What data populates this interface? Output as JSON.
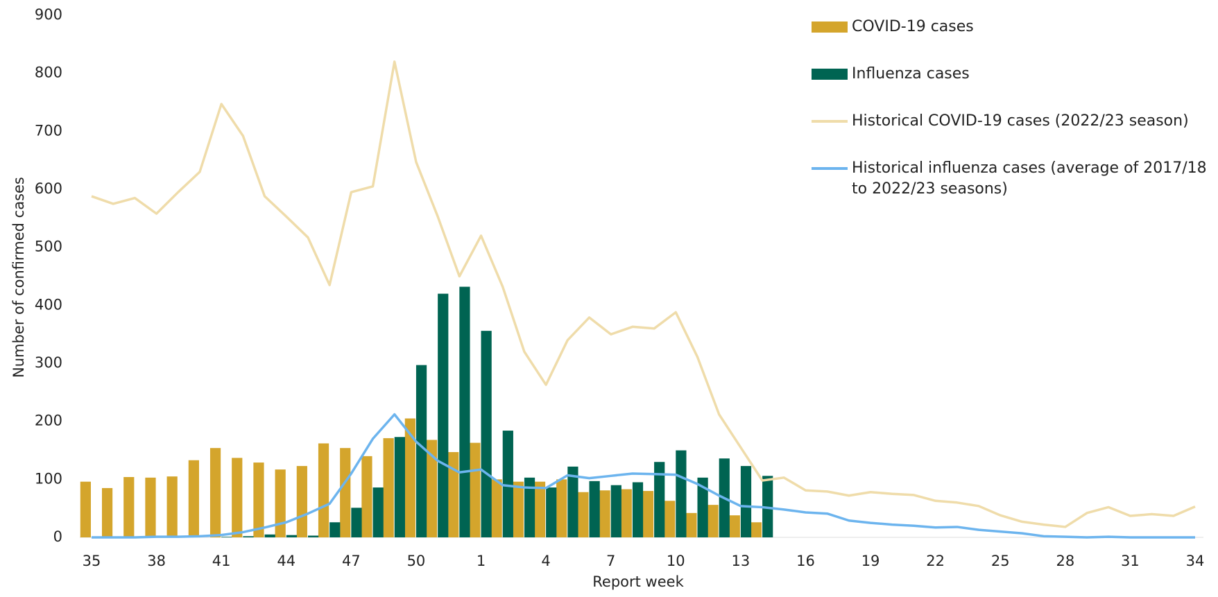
{
  "chart_data": {
    "type": "bar",
    "x_label": "Report week",
    "y_label": "Number of confirmed cases",
    "categories": [
      "35",
      null,
      null,
      "38",
      null,
      null,
      "41",
      null,
      null,
      "44",
      null,
      null,
      "47",
      null,
      null,
      "50",
      null,
      null,
      "1",
      null,
      null,
      "4",
      null,
      null,
      "7",
      null,
      null,
      "10",
      null,
      null,
      "13",
      null,
      null,
      "16",
      null,
      null,
      "19",
      null,
      null,
      "22",
      null,
      null,
      "25",
      null,
      null,
      "28",
      null,
      null,
      "31",
      null,
      null,
      "34"
    ],
    "series": [
      {
        "name": "COVID-19 cases",
        "type": "bar",
        "color": "#d4a52c",
        "values": [
          96,
          85,
          104,
          103,
          105,
          133,
          154,
          137,
          129,
          117,
          123,
          162,
          154,
          140,
          171,
          205,
          168,
          147,
          163,
          100,
          96,
          96,
          100,
          78,
          81,
          83,
          80,
          63,
          42,
          56,
          38,
          26,
          null,
          null,
          null,
          null,
          null,
          null,
          null,
          null,
          null,
          null,
          null,
          null,
          null,
          null,
          null,
          null,
          null,
          null,
          null,
          null
        ]
      },
      {
        "name": "Influenza cases",
        "type": "bar",
        "color": "#006452",
        "values": [
          0,
          0,
          0,
          0,
          0,
          0,
          1,
          2,
          5,
          4,
          3,
          26,
          51,
          86,
          173,
          297,
          420,
          432,
          356,
          184,
          103,
          86,
          122,
          97,
          90,
          95,
          130,
          150,
          103,
          136,
          123,
          106,
          null,
          null,
          null,
          null,
          null,
          null,
          null,
          null,
          null,
          null,
          null,
          null,
          null,
          null,
          null,
          null,
          null,
          null,
          null,
          null
        ]
      },
      {
        "name": "Historical COVID-19 cases (2022/23 season)",
        "type": "line",
        "color": "#efdcaa",
        "values": [
          588,
          575,
          585,
          558,
          595,
          630,
          747,
          692,
          588,
          553,
          517,
          435,
          595,
          605,
          820,
          647,
          553,
          450,
          520,
          432,
          320,
          263,
          340,
          379,
          350,
          363,
          360,
          388,
          311,
          212,
          155,
          98,
          103,
          81,
          79,
          72,
          78,
          75,
          73,
          63,
          60,
          54,
          38,
          27,
          22,
          18,
          42,
          52,
          37,
          40,
          37,
          53
        ]
      },
      {
        "name": "Historical influenza cases (average of 2017/18 to 2022/23 seasons)",
        "type": "line",
        "color": "#6cb4ee",
        "values": [
          0,
          0,
          0,
          1,
          1,
          2,
          4,
          9,
          17,
          26,
          41,
          58,
          110,
          170,
          212,
          165,
          132,
          112,
          117,
          90,
          86,
          85,
          107,
          102,
          106,
          110,
          109,
          108,
          92,
          72,
          54,
          52,
          48,
          43,
          41,
          29,
          25,
          22,
          20,
          17,
          18,
          13,
          10,
          7,
          2,
          1,
          0,
          1,
          0,
          0,
          0,
          0
        ]
      }
    ],
    "ylim": [
      0,
      900
    ],
    "yticks": [
      0,
      100,
      200,
      300,
      400,
      500,
      600,
      700,
      800,
      900
    ],
    "grid": false,
    "legend": "top-right"
  }
}
